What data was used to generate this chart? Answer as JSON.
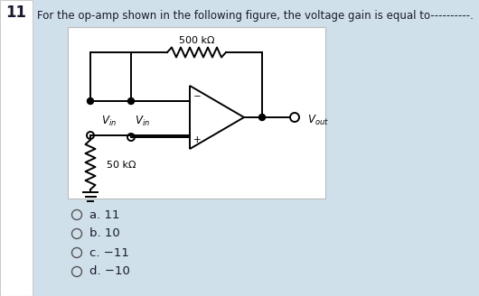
{
  "question_number": "11",
  "question_text": "For the op-amp shown in the following figure, the voltage gain is equal to----------.",
  "resistor_feedback_label": "500 kΩ",
  "resistor_input_label": "50 kΩ",
  "options": [
    "a. 11",
    "b. 10",
    "c. −11",
    "d. −10"
  ],
  "bg_color": "#cfe0ea",
  "box_color": "#ffffff",
  "left_strip_color": "#ffffff",
  "text_color": "#1a1a2e",
  "circuit_line_color": "#000000",
  "question_font_size": 8.5,
  "options_font_size": 9.5,
  "number_font_size": 12
}
